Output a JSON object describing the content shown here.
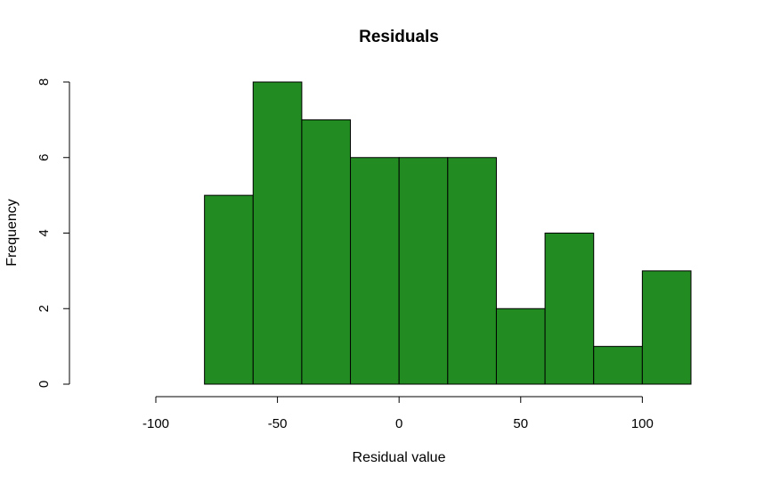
{
  "chart_data": {
    "type": "bar",
    "title": "Residuals",
    "xlabel": "Residual value",
    "ylabel": "Frequency",
    "bar_color": "#228B22",
    "edge_color": "#000000",
    "xlim": [
      -100,
      120
    ],
    "ylim": [
      0,
      8
    ],
    "x_ticks": [
      -100,
      -50,
      0,
      50,
      100
    ],
    "x_tick_labels": [
      "-100",
      "-50",
      "0",
      "50",
      "100"
    ],
    "y_ticks": [
      0,
      2,
      4,
      6,
      8
    ],
    "y_tick_labels": [
      "0",
      "2",
      "4",
      "6",
      "8"
    ],
    "bins": [
      {
        "from": -80,
        "to": -60,
        "count": 5
      },
      {
        "from": -60,
        "to": -40,
        "count": 8
      },
      {
        "from": -40,
        "to": -20,
        "count": 7
      },
      {
        "from": -20,
        "to": 0,
        "count": 6
      },
      {
        "from": 0,
        "to": 20,
        "count": 6
      },
      {
        "from": 20,
        "to": 40,
        "count": 6
      },
      {
        "from": 40,
        "to": 60,
        "count": 2
      },
      {
        "from": 60,
        "to": 80,
        "count": 4
      },
      {
        "from": 80,
        "to": 100,
        "count": 1
      },
      {
        "from": 100,
        "to": 120,
        "count": 3
      }
    ],
    "grid": false,
    "legend": "none"
  }
}
